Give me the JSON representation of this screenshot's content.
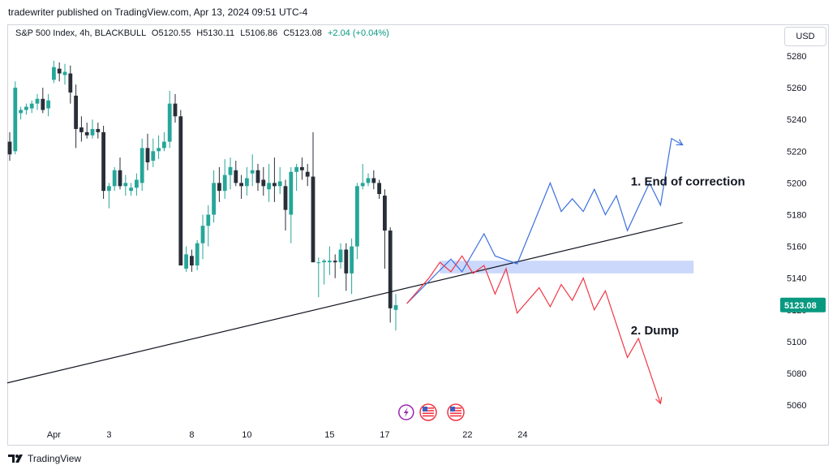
{
  "header": {
    "publisher": "tradewriter published on TradingView.com, Apr 13, 2024 09:51 UTC-4",
    "symbol": "S&P 500 Index, 4h, BLACKBULL",
    "open": "O5120.55",
    "high": "H5130.11",
    "low": "L5106.86",
    "close": "C5123.08",
    "change": "+2.04 (+0.04%)",
    "currency": "USD"
  },
  "footer": {
    "brand": "TradingView",
    "logo_icon": "tradingview-logo-icon"
  },
  "colors": {
    "up": "#26a69a",
    "down": "#2a2e39",
    "bull_path": "#3b6fe0",
    "bear_path": "#f23645",
    "zone": "#c5d4fb",
    "price_tag": "#089981"
  },
  "chart_data": {
    "type": "candlestick",
    "y_axis": {
      "min": 5050,
      "max": 5290,
      "ticks": [
        5060,
        5080,
        5100,
        5120,
        5140,
        5160,
        5180,
        5200,
        5220,
        5240,
        5260,
        5280
      ]
    },
    "x_ticks": [
      {
        "label": "Apr",
        "i": 8
      },
      {
        "label": "3",
        "i": 18
      },
      {
        "label": "8",
        "i": 33
      },
      {
        "label": "10",
        "i": 43
      },
      {
        "label": "15",
        "i": 58
      },
      {
        "label": "17",
        "i": 68
      },
      {
        "label": "22",
        "i": 83
      },
      {
        "label": "24",
        "i": 93
      }
    ],
    "candles": [
      [
        5226,
        5232,
        5214,
        5218
      ],
      [
        5220,
        5264,
        5218,
        5260
      ],
      [
        5244,
        5248,
        5240,
        5246
      ],
      [
        5246,
        5250,
        5243,
        5248
      ],
      [
        5247,
        5252,
        5244,
        5250
      ],
      [
        5250,
        5256,
        5246,
        5253
      ],
      [
        5253,
        5260,
        5244,
        5246
      ],
      [
        5247,
        5256,
        5242,
        5252
      ],
      [
        5265,
        5277,
        5263,
        5273
      ],
      [
        5272,
        5276,
        5264,
        5269
      ],
      [
        5268,
        5275,
        5262,
        5270
      ],
      [
        5269,
        5274,
        5250,
        5257
      ],
      [
        5255,
        5262,
        5222,
        5234
      ],
      [
        5235,
        5242,
        5226,
        5232
      ],
      [
        5232,
        5238,
        5228,
        5230
      ],
      [
        5230,
        5240,
        5228,
        5234
      ],
      [
        5234,
        5238,
        5228,
        5232
      ],
      [
        5232,
        5236,
        5190,
        5195
      ],
      [
        5195,
        5200,
        5184,
        5198
      ],
      [
        5198,
        5210,
        5195,
        5208
      ],
      [
        5208,
        5216,
        5196,
        5198
      ],
      [
        5198,
        5205,
        5192,
        5200
      ],
      [
        5195,
        5200,
        5192,
        5197
      ],
      [
        5197,
        5206,
        5192,
        5202
      ],
      [
        5200,
        5228,
        5195,
        5222
      ],
      [
        5222,
        5231,
        5208,
        5213
      ],
      [
        5214,
        5228,
        5210,
        5220
      ],
      [
        5220,
        5230,
        5215,
        5222
      ],
      [
        5222,
        5232,
        5220,
        5226
      ],
      [
        5226,
        5258,
        5222,
        5250
      ],
      [
        5250,
        5256,
        5238,
        5242
      ],
      [
        5242,
        5246,
        5150,
        5148
      ],
      [
        5146,
        5160,
        5144,
        5155
      ],
      [
        5154,
        5158,
        5144,
        5148
      ],
      [
        5148,
        5164,
        5145,
        5162
      ],
      [
        5162,
        5180,
        5152,
        5173
      ],
      [
        5173,
        5186,
        5160,
        5180
      ],
      [
        5180,
        5208,
        5175,
        5200
      ],
      [
        5200,
        5210,
        5188,
        5195
      ],
      [
        5195,
        5215,
        5190,
        5205
      ],
      [
        5205,
        5216,
        5196,
        5210
      ],
      [
        5208,
        5214,
        5198,
        5200
      ],
      [
        5200,
        5205,
        5190,
        5198
      ],
      [
        5198,
        5210,
        5192,
        5203
      ],
      [
        5206,
        5218,
        5198,
        5208
      ],
      [
        5208,
        5212,
        5195,
        5200
      ],
      [
        5202,
        5210,
        5192,
        5198
      ],
      [
        5196,
        5212,
        5188,
        5200
      ],
      [
        5200,
        5216,
        5188,
        5198
      ],
      [
        5198,
        5210,
        5193,
        5201
      ],
      [
        5198,
        5202,
        5170,
        5183
      ],
      [
        5180,
        5210,
        5162,
        5207
      ],
      [
        5207,
        5212,
        5195,
        5210
      ],
      [
        5210,
        5216,
        5202,
        5208
      ],
      [
        5207,
        5212,
        5198,
        5204
      ],
      [
        5204,
        5232,
        5150,
        5150
      ],
      [
        5150,
        5153,
        5128,
        5150
      ],
      [
        5150,
        5152,
        5136,
        5151
      ],
      [
        5150,
        5160,
        5142,
        5151
      ],
      [
        5151,
        5155,
        5140,
        5150
      ],
      [
        5150,
        5162,
        5146,
        5158
      ],
      [
        5158,
        5162,
        5132,
        5143
      ],
      [
        5143,
        5165,
        5130,
        5160
      ],
      [
        5160,
        5200,
        5152,
        5198
      ],
      [
        5198,
        5212,
        5196,
        5200
      ],
      [
        5200,
        5206,
        5198,
        5203
      ],
      [
        5203,
        5208,
        5196,
        5200
      ],
      [
        5200,
        5202,
        5190,
        5193
      ],
      [
        5192,
        5196,
        5146,
        5170
      ],
      [
        5170,
        5172,
        5112,
        5121
      ],
      [
        5120,
        5130,
        5107,
        5123
      ]
    ],
    "candle_x_index": [
      0,
      1,
      2,
      3,
      4,
      5,
      6,
      7,
      8,
      9,
      10,
      11,
      12,
      13,
      14,
      15,
      16,
      17,
      18,
      19,
      20,
      21,
      22,
      23,
      24,
      25,
      26,
      27,
      28,
      29,
      30,
      31,
      32,
      33,
      34,
      35,
      36,
      37,
      38,
      39,
      40,
      41,
      42,
      43,
      44,
      45,
      46,
      47,
      48,
      49,
      50,
      51,
      52,
      53,
      54,
      55,
      56,
      57,
      58,
      59,
      60,
      61,
      62,
      63,
      64,
      65,
      66,
      67,
      68,
      69,
      70
    ],
    "trendline": {
      "from": {
        "i": 0,
        "price": 5074
      },
      "to": {
        "i": 122,
        "price": 5175
      }
    },
    "zone": {
      "from_i": 78,
      "to_i": 124,
      "top": 5151,
      "bottom": 5143
    },
    "bull_path": [
      [
        72,
        5124
      ],
      [
        80,
        5152
      ],
      [
        82,
        5144
      ],
      [
        86,
        5168
      ],
      [
        88,
        5154
      ],
      [
        92,
        5149
      ],
      [
        98,
        5200
      ],
      [
        100,
        5182
      ],
      [
        102,
        5190
      ],
      [
        104,
        5182
      ],
      [
        106,
        5196
      ],
      [
        108,
        5180
      ],
      [
        110,
        5192
      ],
      [
        112,
        5170
      ],
      [
        116,
        5200
      ],
      [
        118,
        5186
      ],
      [
        120,
        5228
      ],
      [
        122,
        5224
      ]
    ],
    "bear_path": [
      [
        72,
        5124
      ],
      [
        76,
        5140
      ],
      [
        78,
        5150
      ],
      [
        80,
        5144
      ],
      [
        82,
        5154
      ],
      [
        84,
        5143
      ],
      [
        86,
        5148
      ],
      [
        88,
        5130
      ],
      [
        90,
        5146
      ],
      [
        92,
        5118
      ],
      [
        96,
        5134
      ],
      [
        98,
        5122
      ],
      [
        100,
        5136
      ],
      [
        102,
        5126
      ],
      [
        104,
        5140
      ],
      [
        106,
        5120
      ],
      [
        108,
        5132
      ],
      [
        112,
        5090
      ],
      [
        114,
        5102
      ],
      [
        118,
        5061
      ]
    ],
    "annotations": [
      {
        "text": "1. End of correction",
        "i": 106,
        "price": 5201
      },
      {
        "text": "2. Dump",
        "i": 106,
        "price": 5107
      }
    ],
    "last_price": {
      "label": "5123.08",
      "price": 5123.08
    },
    "events": [
      {
        "i": 71,
        "icon": "lightning-icon"
      },
      {
        "i": 75,
        "icon": "us-flag-icon"
      },
      {
        "i": 80,
        "icon": "us-flag-icon"
      }
    ]
  }
}
